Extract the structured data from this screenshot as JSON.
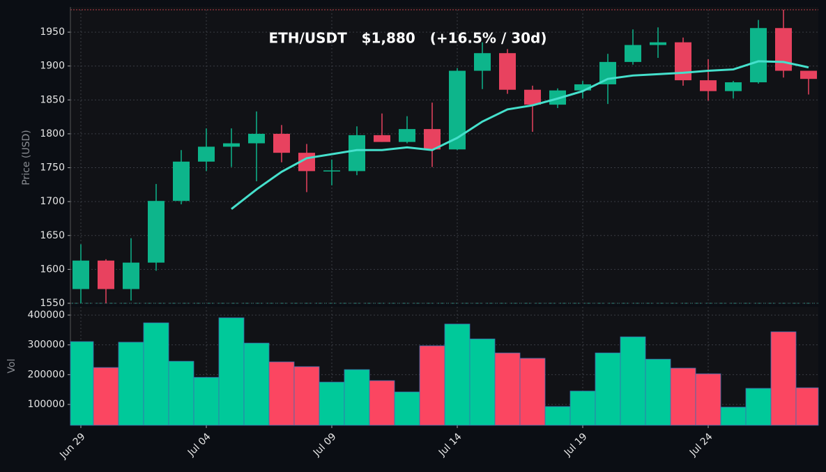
{
  "chart_data": {
    "type": "candlestick",
    "title": "ETH/USDT   $1,880   (+16.5% / 30d)",
    "ylabel": "Price (USD)",
    "categories": [
      "Jun 29",
      null,
      null,
      null,
      null,
      "Jul 04",
      null,
      null,
      null,
      null,
      "Jul 09",
      null,
      null,
      null,
      null,
      "Jul 14",
      null,
      null,
      null,
      null,
      "Jul 19",
      null,
      null,
      null,
      null,
      "Jul 24",
      null,
      null,
      null,
      null
    ],
    "open": [
      1571,
      1613,
      1571,
      1610,
      1701,
      1759,
      1781,
      1786,
      1800,
      1772,
      1745,
      1745,
      1798,
      1788,
      1807,
      1777,
      1893,
      1919,
      1865,
      1843,
      1864,
      1873,
      1906,
      1931,
      1935,
      1879,
      1863,
      1876,
      1956,
      1893
    ],
    "high": [
      1637,
      1615,
      1646,
      1726,
      1776,
      1808,
      1808,
      1833,
      1813,
      1785,
      1762,
      1811,
      1830,
      1826,
      1846,
      1897,
      1935,
      1925,
      1871,
      1867,
      1878,
      1918,
      1954,
      1957,
      1942,
      1910,
      1878,
      1968,
      1983,
      1893
    ],
    "low": [
      1550,
      1550,
      1554,
      1598,
      1696,
      1745,
      1751,
      1730,
      1758,
      1714,
      1724,
      1739,
      1788,
      1786,
      1751,
      1776,
      1866,
      1859,
      1803,
      1838,
      1852,
      1844,
      1902,
      1912,
      1871,
      1849,
      1852,
      1874,
      1883,
      1858
    ],
    "close": [
      1613,
      1571,
      1610,
      1701,
      1759,
      1781,
      1786,
      1800,
      1772,
      1745,
      1746,
      1798,
      1788,
      1807,
      1777,
      1893,
      1919,
      1865,
      1843,
      1864,
      1873,
      1906,
      1931,
      1935,
      1879,
      1863,
      1876,
      1956,
      1893,
      1881
    ],
    "up_color": "#0db58b",
    "down_color": "#e8425f",
    "ma": {
      "color": "#45e0cc",
      "values": [
        null,
        null,
        null,
        null,
        null,
        null,
        1689,
        1718,
        1744,
        1764,
        1770,
        1776,
        1776,
        1780,
        1776,
        1794,
        1818,
        1836,
        1842,
        1852,
        1863,
        1881,
        1886,
        1888,
        1890,
        1893,
        1895,
        1907,
        1906,
        1898
      ]
    },
    "ylim": [
      1550,
      1983
    ],
    "yticks": [
      1550,
      1600,
      1650,
      1700,
      1750,
      1800,
      1850,
      1900,
      1950
    ],
    "grid": true,
    "volume": {
      "ylabel": "Vol",
      "up_color": "#00c99a",
      "down_color": "#fb4661",
      "values": [
        311000,
        224000,
        309000,
        374000,
        245000,
        191000,
        391000,
        306000,
        243000,
        227000,
        175000,
        217000,
        180000,
        142000,
        297000,
        370000,
        320000,
        273000,
        255000,
        93000,
        145000,
        273000,
        327000,
        252000,
        222000,
        203000,
        91000,
        154000,
        344000,
        156000
      ],
      "ylim": [
        30000,
        428000
      ],
      "yticks": [
        100000,
        200000,
        300000,
        400000
      ]
    }
  }
}
